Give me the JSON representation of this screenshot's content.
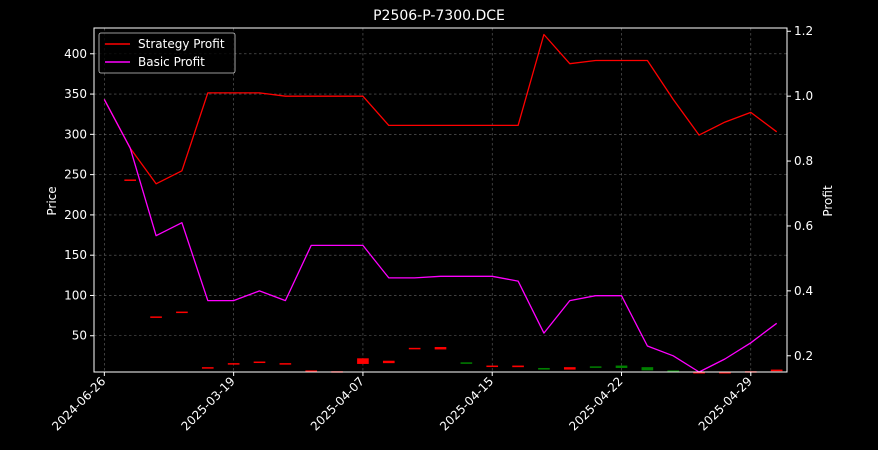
{
  "chart_data": {
    "type": "line",
    "title": "P2506-P-7300.DCE",
    "xlabel": "",
    "ylabel": "Price",
    "y2label": "Profit",
    "background": "#000000",
    "grid": true,
    "legend_position": "top-left",
    "x_ticks": [
      "2024-06-26",
      "2025-03-19",
      "2025-04-07",
      "2025-04-15",
      "2025-04-22",
      "2025-04-29"
    ],
    "x_tick_index": [
      0,
      5,
      10,
      15,
      20,
      25
    ],
    "x_range": [
      -0.4,
      26.4
    ],
    "y_ticks": [
      50,
      100,
      150,
      200,
      250,
      300,
      350,
      400
    ],
    "ylim": [
      5,
      432
    ],
    "y2_ticks": [
      0.2,
      0.4,
      0.6,
      0.8,
      1.0,
      1.2
    ],
    "y2lim": [
      0.15,
      1.21
    ],
    "series": [
      {
        "name": "Strategy Profit",
        "color": "#ff0000",
        "axis": "right",
        "values": [
          0.99,
          0.84,
          0.73,
          0.77,
          1.01,
          1.01,
          1.01,
          1.0,
          1.0,
          1.0,
          1.0,
          0.91,
          0.91,
          0.91,
          0.91,
          0.91,
          0.91,
          1.19,
          1.1,
          1.11,
          1.11,
          1.11,
          0.99,
          0.88,
          0.92,
          0.95,
          0.89
        ]
      },
      {
        "name": "Basic Profit",
        "color": "#ff00ff",
        "axis": "right",
        "values": [
          0.99,
          0.84,
          0.57,
          0.61,
          0.37,
          0.37,
          0.4,
          0.37,
          0.54,
          0.54,
          0.54,
          0.44,
          0.44,
          0.445,
          0.445,
          0.445,
          0.43,
          0.27,
          0.37,
          0.385,
          0.385,
          0.23,
          0.2,
          0.15,
          0.19,
          0.24,
          0.3
        ]
      }
    ],
    "candles": [
      {
        "i": 1,
        "open": 244,
        "close": 244,
        "color": "#ff0000"
      },
      {
        "i": 2,
        "open": 74,
        "close": 74,
        "color": "#ff0000"
      },
      {
        "i": 3,
        "open": 80,
        "close": 80,
        "color": "#ff0000"
      },
      {
        "i": 4,
        "open": 11,
        "close": 11,
        "color": "#ff0000"
      },
      {
        "i": 5,
        "open": 16,
        "close": 16,
        "color": "#ff0000"
      },
      {
        "i": 6,
        "open": 18,
        "close": 17,
        "color": "#ff0000"
      },
      {
        "i": 7,
        "open": 16,
        "close": 16,
        "color": "#ff0000"
      },
      {
        "i": 8,
        "open": 7,
        "close": 7,
        "color": "#ff0000"
      },
      {
        "i": 9,
        "open": 6,
        "close": 6,
        "color": "#ff0000"
      },
      {
        "i": 10,
        "open": 22,
        "close": 15,
        "color": "#ff0000"
      },
      {
        "i": 11,
        "open": 19,
        "close": 16,
        "color": "#ff0000"
      },
      {
        "i": 12,
        "open": 35,
        "close": 35,
        "color": "#ff0000"
      },
      {
        "i": 13,
        "open": 36,
        "close": 33,
        "color": "#ff0000"
      },
      {
        "i": 14,
        "open": 16,
        "close": 17,
        "color": "#008000"
      },
      {
        "i": 15,
        "open": 13,
        "close": 13,
        "color": "#ff0000"
      },
      {
        "i": 16,
        "open": 13,
        "close": 11,
        "color": "#ff0000"
      },
      {
        "i": 17,
        "open": 8,
        "close": 10,
        "color": "#008000"
      },
      {
        "i": 18,
        "open": 11,
        "close": 8,
        "color": "#ff0000"
      },
      {
        "i": 19,
        "open": 11,
        "close": 12,
        "color": "#008000"
      },
      {
        "i": 20,
        "open": 10,
        "close": 13,
        "color": "#008000"
      },
      {
        "i": 21,
        "open": 7,
        "close": 11,
        "color": "#008000"
      },
      {
        "i": 22,
        "open": 5,
        "close": 7,
        "color": "#008000"
      },
      {
        "i": 23,
        "open": 5,
        "close": 5,
        "color": "#ff0000"
      },
      {
        "i": 24,
        "open": 5,
        "close": 5,
        "color": "#ff0000"
      },
      {
        "i": 25,
        "open": 6,
        "close": 5,
        "color": "#ff0000"
      },
      {
        "i": 26,
        "open": 8,
        "close": 6,
        "color": "#ff0000"
      }
    ]
  }
}
